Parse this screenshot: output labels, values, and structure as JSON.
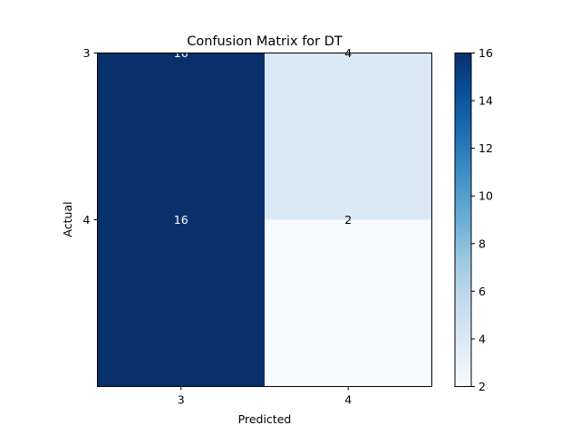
{
  "chart_data": {
    "type": "heatmap",
    "title": "Confusion Matrix for DT",
    "xlabel": "Predicted",
    "ylabel": "Actual",
    "x_categories": [
      "3",
      "4"
    ],
    "y_categories": [
      "3",
      "4"
    ],
    "values": [
      [
        16,
        4
      ],
      [
        16,
        2
      ]
    ],
    "colormap": "Blues",
    "colorbar": {
      "min": 2,
      "max": 16,
      "ticks": [
        "2",
        "4",
        "6",
        "8",
        "10",
        "12",
        "14",
        "16"
      ]
    },
    "grid": false
  }
}
